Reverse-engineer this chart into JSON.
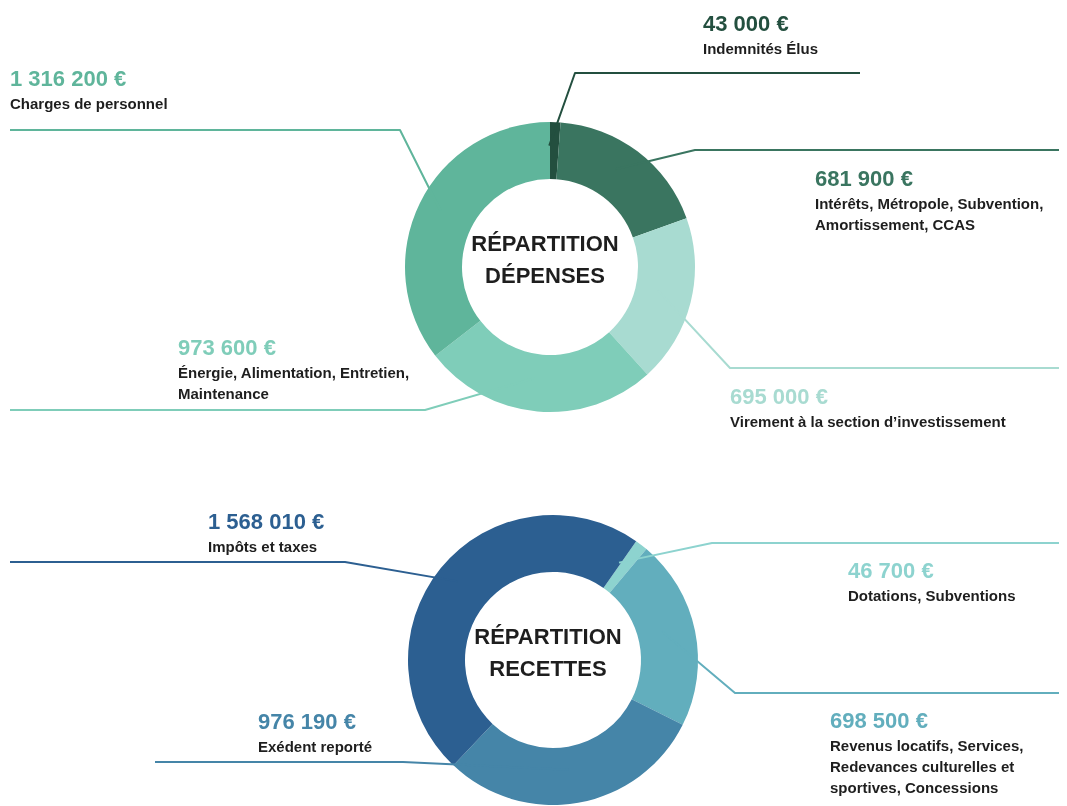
{
  "chart_data": [
    {
      "type": "donut",
      "title": "RÉPARTITION DÉPENSES",
      "categories": [
        "Indemnités Élus",
        "Intérêts, Métropole, Subvention, Amortissement, CCAS",
        "Virement à la section d’investissement",
        "Énergie, Alimentation, Entretien, Maintenance",
        "Charges de personnel"
      ],
      "values": [
        43000,
        681900,
        695000,
        973600,
        1316200
      ],
      "value_labels": [
        "43 000 €",
        "681 900 €",
        "695 000 €",
        "973 600 €",
        "1 316 200 €"
      ],
      "colors": [
        "#234f3f",
        "#3a7560",
        "#a8dbd1",
        "#7fcdb9",
        "#5fb59b"
      ]
    },
    {
      "type": "donut",
      "title": "RÉPARTITION RECETTES",
      "categories": [
        "Dotations, Subventions",
        "Revenus locatifs, Services, Redevances culturelles et sportives, Concessions",
        "Exédent reporté",
        "Impôts et taxes"
      ],
      "values": [
        46700,
        698500,
        976190,
        1568010
      ],
      "value_labels": [
        "46 700 €",
        "698 500 €",
        "976 190 €",
        "1 568 010 €"
      ],
      "colors": [
        "#8dd3cf",
        "#62aebd",
        "#4585a8",
        "#2c5f91"
      ]
    }
  ]
}
